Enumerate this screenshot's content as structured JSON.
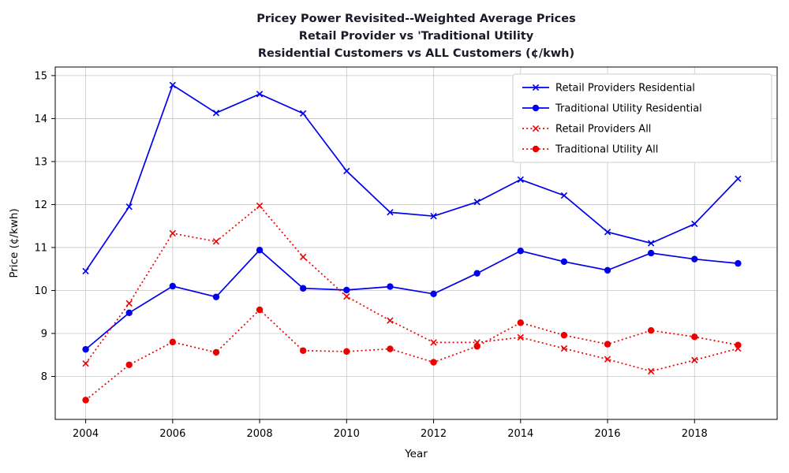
{
  "chart_data": {
    "type": "line",
    "title_lines": [
      "Pricey Power Revisited--Weighted Average Prices",
      "Retail Provider vs 'Traditional Utility",
      "Residential Customers vs  ALL Customers (¢/kwh)"
    ],
    "xlabel": "Year",
    "ylabel": "Price (¢/kwh)",
    "x": [
      2004,
      2005,
      2006,
      2007,
      2008,
      2009,
      2010,
      2011,
      2012,
      2013,
      2014,
      2015,
      2016,
      2017,
      2018,
      2019
    ],
    "xticks": [
      2004,
      2006,
      2008,
      2010,
      2012,
      2014,
      2016,
      2018
    ],
    "yticks": [
      8,
      9,
      10,
      11,
      12,
      13,
      14,
      15
    ],
    "xlim": [
      2003.3,
      2019.9
    ],
    "ylim": [
      7.0,
      15.2
    ],
    "grid": true,
    "legend_position": "upper right",
    "series": [
      {
        "name": "Retail Providers Residential",
        "color": "#0000ee",
        "linestyle": "solid",
        "marker": "x",
        "values": [
          10.45,
          11.95,
          14.78,
          14.13,
          14.57,
          14.12,
          12.78,
          11.82,
          11.73,
          12.06,
          12.58,
          12.21,
          11.36,
          11.1,
          11.55,
          12.6
        ]
      },
      {
        "name": "Traditional Utility Residential",
        "color": "#0000ee",
        "linestyle": "solid",
        "marker": "o",
        "values": [
          8.63,
          9.48,
          10.1,
          9.85,
          10.94,
          10.05,
          10.01,
          10.09,
          9.92,
          10.4,
          10.92,
          10.67,
          10.47,
          10.87,
          10.73,
          10.63
        ]
      },
      {
        "name": "Retail Providers All",
        "color": "#ee0000",
        "linestyle": "dotted",
        "marker": "x",
        "values": [
          8.3,
          9.7,
          11.33,
          11.14,
          11.97,
          10.78,
          9.86,
          9.3,
          8.79,
          8.79,
          8.91,
          8.65,
          8.4,
          8.12,
          8.38,
          8.65
        ]
      },
      {
        "name": "Traditional Utility All",
        "color": "#ee0000",
        "linestyle": "dotted",
        "marker": "o",
        "values": [
          7.45,
          8.27,
          8.8,
          8.56,
          9.55,
          8.6,
          8.58,
          8.64,
          8.33,
          8.7,
          9.25,
          8.96,
          8.75,
          9.07,
          8.92,
          8.73
        ]
      }
    ]
  }
}
